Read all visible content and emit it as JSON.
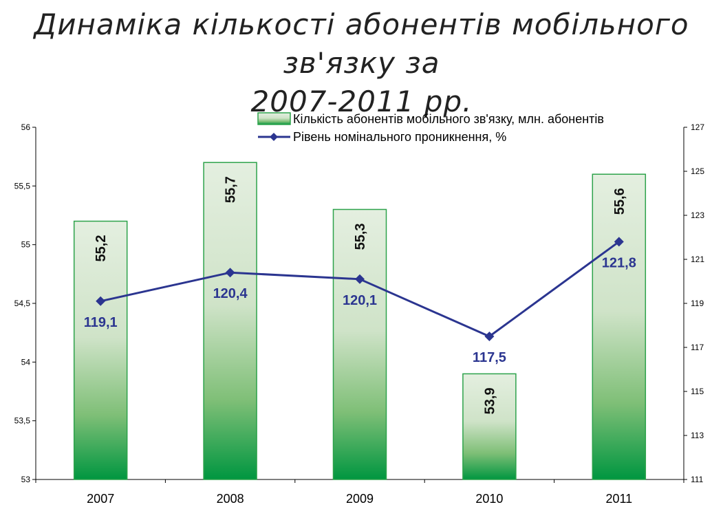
{
  "title": {
    "line1": "Динаміка кількості абонентів мобільного зв'язку за",
    "line2": "2007-2011 рр."
  },
  "colors": {
    "bar_fill_top": "#e4efe0",
    "bar_fill_bottom": "#009640",
    "bar_stroke": "#2ca24a",
    "line": "#2b3590",
    "line_label": "#2b3590",
    "bar_label": "#111111"
  },
  "chart_data": {
    "type": "bar",
    "categories": [
      "2007",
      "2008",
      "2009",
      "2010",
      "2011"
    ],
    "series": [
      {
        "name": "Кількість абонентів мобільного зв'язку, млн. абонентів",
        "type": "bar",
        "axis": "left",
        "values": [
          55.2,
          55.7,
          55.3,
          53.9,
          55.6
        ],
        "labels": [
          "55,2",
          "55,7",
          "55,3",
          "53,9",
          "55,6"
        ]
      },
      {
        "name": "Рівень номінального проникнення, %",
        "type": "line",
        "axis": "right",
        "marker": "diamond",
        "values": [
          119.1,
          120.4,
          120.1,
          117.5,
          121.8
        ],
        "labels": [
          "119,1",
          "120,4",
          "120,1",
          "117,5",
          "121,8"
        ]
      }
    ],
    "y_left": {
      "ylim": [
        53,
        56
      ],
      "ticks": [
        53,
        53.5,
        54,
        54.5,
        55,
        55.5,
        56
      ],
      "tick_labels": [
        "53",
        "53,5",
        "54",
        "54,5",
        "55",
        "55,5",
        "56"
      ]
    },
    "y_right": {
      "ylim": [
        111,
        127
      ],
      "ticks": [
        111,
        113,
        115,
        117,
        119,
        121,
        123,
        125,
        127
      ],
      "tick_labels": [
        "111",
        "113",
        "115",
        "117",
        "119",
        "121",
        "123",
        "125",
        "127"
      ]
    },
    "grid": false,
    "legend_position": "top-right"
  }
}
